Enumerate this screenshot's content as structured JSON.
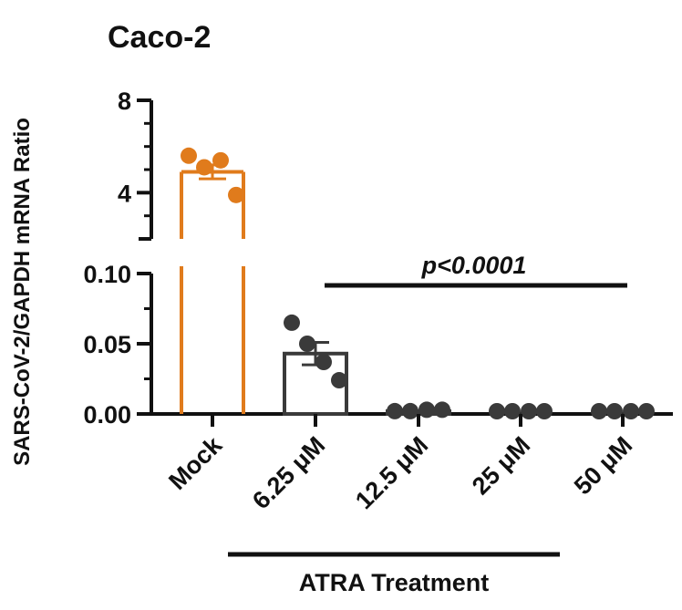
{
  "colors": {
    "mock": "#E07B1C",
    "treated": "#3A3A3A",
    "axis": "#111111"
  },
  "chart_data": {
    "type": "bar",
    "title": "Caco-2",
    "ylabel": "SARS-CoV-2/GAPDH mRNA Ratio",
    "xlabel": "",
    "broken_axis": true,
    "upper_segment": {
      "ylim": [
        2,
        8
      ],
      "ticks": [
        "8",
        "4"
      ],
      "tick_values": [
        8,
        4
      ]
    },
    "lower_segment": {
      "ylim": [
        0,
        0.1
      ],
      "ticks": [
        "0.10",
        "0.05",
        "0.00"
      ],
      "tick_values": [
        0.1,
        0.05,
        0.0
      ]
    },
    "categories": [
      "Mock",
      "6.25 μM",
      "12.5 μM",
      "25 μM",
      "50 μM"
    ],
    "bars": [
      {
        "category": "Mock",
        "mean": 4.9,
        "sem": 0.3,
        "points": [
          5.6,
          5.1,
          5.4,
          3.9
        ]
      },
      {
        "category": "6.25 μM",
        "mean": 0.043,
        "sem": 0.008,
        "points": [
          0.065,
          0.05,
          0.037,
          0.024
        ]
      },
      {
        "category": "12.5 μM",
        "mean": 0.002,
        "sem": 0.0,
        "points": [
          0.002,
          0.002,
          0.003,
          0.003
        ]
      },
      {
        "category": "25 μM",
        "mean": 0.0,
        "sem": 0.0,
        "points": [
          0.0,
          0.0,
          0.0,
          0.0
        ]
      },
      {
        "category": "50 μM",
        "mean": 0.0,
        "sem": 0.0,
        "points": [
          0.0,
          0.0,
          0.0,
          0.0
        ]
      }
    ],
    "annotations": {
      "significance": "p<0.0001",
      "group_label": "ATRA Treatment"
    },
    "grid": false,
    "legend": "none"
  }
}
